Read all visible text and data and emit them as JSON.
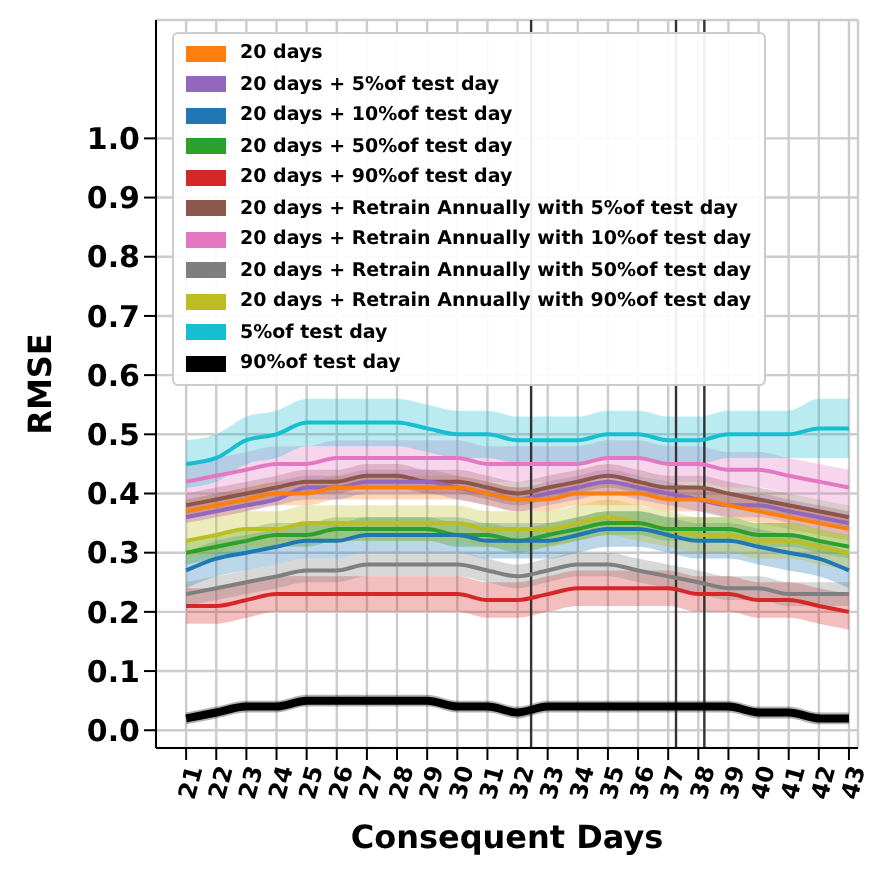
{
  "chart_data": {
    "type": "line",
    "xlabel": "Consequent Days",
    "ylabel": "RMSE",
    "x": [
      21,
      22,
      23,
      24,
      25,
      26,
      27,
      28,
      29,
      30,
      31,
      32,
      33,
      34,
      35,
      36,
      37,
      38,
      39,
      40,
      41,
      42,
      43
    ],
    "xlim": [
      20,
      43.3
    ],
    "xticks": [
      21,
      22,
      23,
      24,
      25,
      26,
      27,
      28,
      29,
      30,
      31,
      32,
      33,
      34,
      35,
      36,
      37,
      38,
      39,
      40,
      41,
      42,
      43
    ],
    "ylim": [
      -0.03,
      1.2
    ],
    "yticks": [
      {
        "value": 0,
        "label": "0.0"
      },
      {
        "value": 0.1,
        "label": "0.1"
      },
      {
        "value": 0.2,
        "label": "0.2"
      },
      {
        "value": 0.3,
        "label": "0.3"
      },
      {
        "value": 0.4,
        "label": "0.4"
      },
      {
        "value": 0.5,
        "label": "0.5"
      },
      {
        "value": 0.6,
        "label": "0.6"
      },
      {
        "value": 0.7,
        "label": "0.7"
      },
      {
        "value": 0.8,
        "label": "0.8"
      },
      {
        "value": 0.9,
        "label": "0.9"
      },
      {
        "value": 1,
        "label": "1.0"
      }
    ],
    "grid": true,
    "legend": "top left",
    "marker": "none",
    "line_style": "solid",
    "ref_lines": [
      {
        "axis": "x",
        "value": 32.45,
        "color": "#333333"
      },
      {
        "axis": "x",
        "value": 37.26,
        "color": "#333333"
      },
      {
        "axis": "x",
        "value": 38.2,
        "color": "#333333"
      }
    ],
    "series": [
      {
        "name": "20 days",
        "color": "#ff7f0e",
        "values": [
          0.37,
          0.38,
          0.39,
          0.4,
          0.4,
          0.41,
          0.41,
          0.41,
          0.41,
          0.41,
          0.4,
          0.39,
          0.39,
          0.4,
          0.4,
          0.4,
          0.39,
          0.39,
          0.38,
          0.37,
          0.36,
          0.35,
          0.34
        ],
        "lower": [
          0.35,
          0.36,
          0.37,
          0.38,
          0.38,
          0.39,
          0.39,
          0.39,
          0.39,
          0.39,
          0.38,
          0.37,
          0.37,
          0.38,
          0.38,
          0.38,
          0.37,
          0.37,
          0.36,
          0.35,
          0.34,
          0.33,
          0.32
        ],
        "upper": [
          0.39,
          0.4,
          0.41,
          0.42,
          0.42,
          0.43,
          0.43,
          0.43,
          0.43,
          0.43,
          0.42,
          0.41,
          0.41,
          0.42,
          0.42,
          0.42,
          0.41,
          0.41,
          0.4,
          0.39,
          0.38,
          0.37,
          0.36
        ]
      },
      {
        "name": "20 days + 5%of test day",
        "color": "#9467bd",
        "values": [
          0.36,
          0.37,
          0.38,
          0.39,
          0.41,
          0.41,
          0.42,
          0.42,
          0.42,
          0.41,
          0.4,
          0.39,
          0.4,
          0.41,
          0.42,
          0.41,
          0.4,
          0.39,
          0.38,
          0.38,
          0.37,
          0.36,
          0.35
        ],
        "lower": [
          0.35,
          0.36,
          0.37,
          0.38,
          0.39,
          0.39,
          0.4,
          0.4,
          0.4,
          0.39,
          0.38,
          0.37,
          0.38,
          0.39,
          0.4,
          0.39,
          0.38,
          0.37,
          0.36,
          0.36,
          0.35,
          0.34,
          0.33
        ],
        "upper": [
          0.39,
          0.4,
          0.41,
          0.42,
          0.43,
          0.43,
          0.44,
          0.44,
          0.44,
          0.43,
          0.42,
          0.41,
          0.42,
          0.43,
          0.44,
          0.43,
          0.42,
          0.41,
          0.4,
          0.4,
          0.39,
          0.38,
          0.37
        ]
      },
      {
        "name": "20 days + 10%of test day",
        "color": "#1f77b4",
        "values": [
          0.27,
          0.29,
          0.3,
          0.31,
          0.32,
          0.32,
          0.33,
          0.33,
          0.33,
          0.33,
          0.32,
          0.32,
          0.32,
          0.33,
          0.34,
          0.34,
          0.33,
          0.32,
          0.32,
          0.31,
          0.3,
          0.29,
          0.27
        ],
        "lower": [
          0.24,
          0.26,
          0.27,
          0.28,
          0.29,
          0.29,
          0.3,
          0.3,
          0.3,
          0.3,
          0.29,
          0.29,
          0.29,
          0.3,
          0.31,
          0.31,
          0.3,
          0.29,
          0.29,
          0.28,
          0.27,
          0.26,
          0.24
        ],
        "upper": [
          0.3,
          0.32,
          0.33,
          0.34,
          0.35,
          0.35,
          0.36,
          0.36,
          0.36,
          0.36,
          0.35,
          0.35,
          0.35,
          0.36,
          0.37,
          0.37,
          0.36,
          0.35,
          0.35,
          0.34,
          0.33,
          0.32,
          0.3
        ]
      },
      {
        "name": "20 days + 50%of test day",
        "color": "#2ca02c",
        "values": [
          0.3,
          0.31,
          0.32,
          0.33,
          0.33,
          0.34,
          0.34,
          0.34,
          0.34,
          0.33,
          0.33,
          0.32,
          0.33,
          0.34,
          0.35,
          0.35,
          0.34,
          0.34,
          0.34,
          0.33,
          0.33,
          0.32,
          0.31
        ],
        "lower": [
          0.28,
          0.29,
          0.3,
          0.31,
          0.31,
          0.32,
          0.32,
          0.32,
          0.32,
          0.31,
          0.31,
          0.3,
          0.31,
          0.32,
          0.33,
          0.33,
          0.32,
          0.32,
          0.32,
          0.31,
          0.31,
          0.3,
          0.29
        ],
        "upper": [
          0.32,
          0.33,
          0.34,
          0.35,
          0.35,
          0.36,
          0.36,
          0.36,
          0.36,
          0.35,
          0.35,
          0.34,
          0.35,
          0.36,
          0.37,
          0.37,
          0.36,
          0.36,
          0.36,
          0.35,
          0.35,
          0.34,
          0.33
        ]
      },
      {
        "name": "20 days + 90%of test day",
        "color": "#d62728",
        "values": [
          0.21,
          0.21,
          0.22,
          0.23,
          0.23,
          0.23,
          0.23,
          0.23,
          0.23,
          0.23,
          0.22,
          0.22,
          0.23,
          0.24,
          0.24,
          0.24,
          0.24,
          0.23,
          0.23,
          0.22,
          0.22,
          0.21,
          0.2
        ],
        "lower": [
          0.18,
          0.18,
          0.19,
          0.2,
          0.2,
          0.2,
          0.2,
          0.2,
          0.2,
          0.2,
          0.19,
          0.19,
          0.2,
          0.21,
          0.21,
          0.21,
          0.21,
          0.2,
          0.2,
          0.19,
          0.19,
          0.18,
          0.17
        ],
        "upper": [
          0.24,
          0.24,
          0.25,
          0.26,
          0.26,
          0.26,
          0.26,
          0.26,
          0.26,
          0.26,
          0.25,
          0.25,
          0.26,
          0.27,
          0.27,
          0.27,
          0.27,
          0.26,
          0.26,
          0.25,
          0.25,
          0.24,
          0.23
        ]
      },
      {
        "name": "20 days + Retrain Annually with 5%of test day",
        "color": "#8c564b",
        "values": [
          0.38,
          0.39,
          0.4,
          0.41,
          0.42,
          0.42,
          0.43,
          0.43,
          0.42,
          0.42,
          0.41,
          0.4,
          0.41,
          0.42,
          0.43,
          0.42,
          0.41,
          0.41,
          0.4,
          0.39,
          0.38,
          0.37,
          0.36
        ],
        "lower": [
          0.36,
          0.37,
          0.38,
          0.39,
          0.4,
          0.4,
          0.41,
          0.41,
          0.4,
          0.4,
          0.39,
          0.38,
          0.39,
          0.4,
          0.41,
          0.4,
          0.39,
          0.39,
          0.38,
          0.37,
          0.36,
          0.35,
          0.34
        ],
        "upper": [
          0.4,
          0.41,
          0.42,
          0.43,
          0.44,
          0.44,
          0.45,
          0.45,
          0.44,
          0.44,
          0.43,
          0.42,
          0.43,
          0.44,
          0.45,
          0.44,
          0.43,
          0.43,
          0.42,
          0.41,
          0.4,
          0.39,
          0.38
        ]
      },
      {
        "name": "20 days + Retrain Annually with 10%of test day",
        "color": "#e377c2",
        "values": [
          0.42,
          0.43,
          0.44,
          0.45,
          0.45,
          0.46,
          0.46,
          0.46,
          0.46,
          0.46,
          0.45,
          0.45,
          0.45,
          0.45,
          0.46,
          0.46,
          0.45,
          0.45,
          0.44,
          0.44,
          0.43,
          0.42,
          0.41
        ],
        "lower": [
          0.39,
          0.4,
          0.41,
          0.42,
          0.42,
          0.43,
          0.43,
          0.43,
          0.43,
          0.43,
          0.42,
          0.42,
          0.42,
          0.42,
          0.43,
          0.43,
          0.42,
          0.42,
          0.41,
          0.41,
          0.4,
          0.39,
          0.38
        ],
        "upper": [
          0.45,
          0.46,
          0.47,
          0.48,
          0.48,
          0.49,
          0.49,
          0.49,
          0.49,
          0.49,
          0.48,
          0.48,
          0.48,
          0.48,
          0.49,
          0.49,
          0.48,
          0.48,
          0.47,
          0.47,
          0.46,
          0.45,
          0.44
        ]
      },
      {
        "name": "20 days + Retrain Annually with 50%of test day",
        "color": "#7f7f7f",
        "values": [
          0.23,
          0.24,
          0.25,
          0.26,
          0.27,
          0.27,
          0.28,
          0.28,
          0.28,
          0.28,
          0.27,
          0.26,
          0.27,
          0.28,
          0.28,
          0.27,
          0.26,
          0.25,
          0.24,
          0.24,
          0.23,
          0.23,
          0.23
        ],
        "lower": [
          0.21,
          0.22,
          0.23,
          0.24,
          0.25,
          0.25,
          0.26,
          0.26,
          0.26,
          0.26,
          0.25,
          0.24,
          0.25,
          0.26,
          0.26,
          0.25,
          0.24,
          0.23,
          0.22,
          0.22,
          0.21,
          0.21,
          0.21
        ],
        "upper": [
          0.25,
          0.26,
          0.27,
          0.28,
          0.29,
          0.29,
          0.3,
          0.3,
          0.3,
          0.3,
          0.29,
          0.28,
          0.29,
          0.3,
          0.3,
          0.29,
          0.28,
          0.27,
          0.26,
          0.26,
          0.25,
          0.25,
          0.25
        ]
      },
      {
        "name": "20 days + Retrain Annually with 90%of test day",
        "color": "#bcbd22",
        "values": [
          0.32,
          0.33,
          0.34,
          0.34,
          0.35,
          0.35,
          0.35,
          0.35,
          0.35,
          0.35,
          0.34,
          0.34,
          0.34,
          0.35,
          0.36,
          0.35,
          0.34,
          0.33,
          0.33,
          0.32,
          0.32,
          0.31,
          0.3
        ],
        "lower": [
          0.29,
          0.3,
          0.31,
          0.31,
          0.32,
          0.32,
          0.32,
          0.32,
          0.32,
          0.32,
          0.31,
          0.31,
          0.31,
          0.32,
          0.33,
          0.32,
          0.31,
          0.3,
          0.3,
          0.29,
          0.29,
          0.28,
          0.27
        ],
        "upper": [
          0.35,
          0.36,
          0.37,
          0.37,
          0.38,
          0.38,
          0.38,
          0.38,
          0.38,
          0.38,
          0.37,
          0.37,
          0.37,
          0.38,
          0.39,
          0.38,
          0.37,
          0.36,
          0.36,
          0.35,
          0.35,
          0.34,
          0.33
        ]
      },
      {
        "name": "5%of test day",
        "color": "#17becf",
        "values": [
          0.45,
          0.46,
          0.49,
          0.5,
          0.52,
          0.52,
          0.52,
          0.52,
          0.51,
          0.5,
          0.5,
          0.49,
          0.49,
          0.49,
          0.5,
          0.5,
          0.49,
          0.49,
          0.5,
          0.5,
          0.5,
          0.51,
          0.51
        ],
        "lower": [
          0.41,
          0.42,
          0.45,
          0.46,
          0.48,
          0.48,
          0.48,
          0.48,
          0.47,
          0.46,
          0.46,
          0.45,
          0.45,
          0.45,
          0.46,
          0.46,
          0.45,
          0.45,
          0.46,
          0.46,
          0.46,
          0.46,
          0.46
        ],
        "upper": [
          0.49,
          0.5,
          0.53,
          0.54,
          0.56,
          0.56,
          0.56,
          0.56,
          0.55,
          0.54,
          0.54,
          0.53,
          0.53,
          0.53,
          0.54,
          0.54,
          0.53,
          0.53,
          0.54,
          0.54,
          0.54,
          0.56,
          0.56
        ]
      },
      {
        "name": "90%of test day",
        "color": "#000000",
        "values": [
          0.02,
          0.03,
          0.04,
          0.04,
          0.05,
          0.05,
          0.05,
          0.05,
          0.05,
          0.04,
          0.04,
          0.03,
          0.04,
          0.04,
          0.04,
          0.04,
          0.04,
          0.04,
          0.04,
          0.03,
          0.03,
          0.02,
          0.02
        ],
        "lower": [
          0.01,
          0.02,
          0.03,
          0.03,
          0.04,
          0.04,
          0.04,
          0.04,
          0.04,
          0.03,
          0.03,
          0.02,
          0.03,
          0.03,
          0.03,
          0.03,
          0.03,
          0.03,
          0.03,
          0.02,
          0.02,
          0.01,
          0.01
        ],
        "upper": [
          0.03,
          0.04,
          0.05,
          0.05,
          0.06,
          0.06,
          0.06,
          0.06,
          0.06,
          0.05,
          0.05,
          0.04,
          0.05,
          0.05,
          0.05,
          0.05,
          0.05,
          0.05,
          0.05,
          0.04,
          0.04,
          0.03,
          0.03
        ]
      }
    ]
  }
}
